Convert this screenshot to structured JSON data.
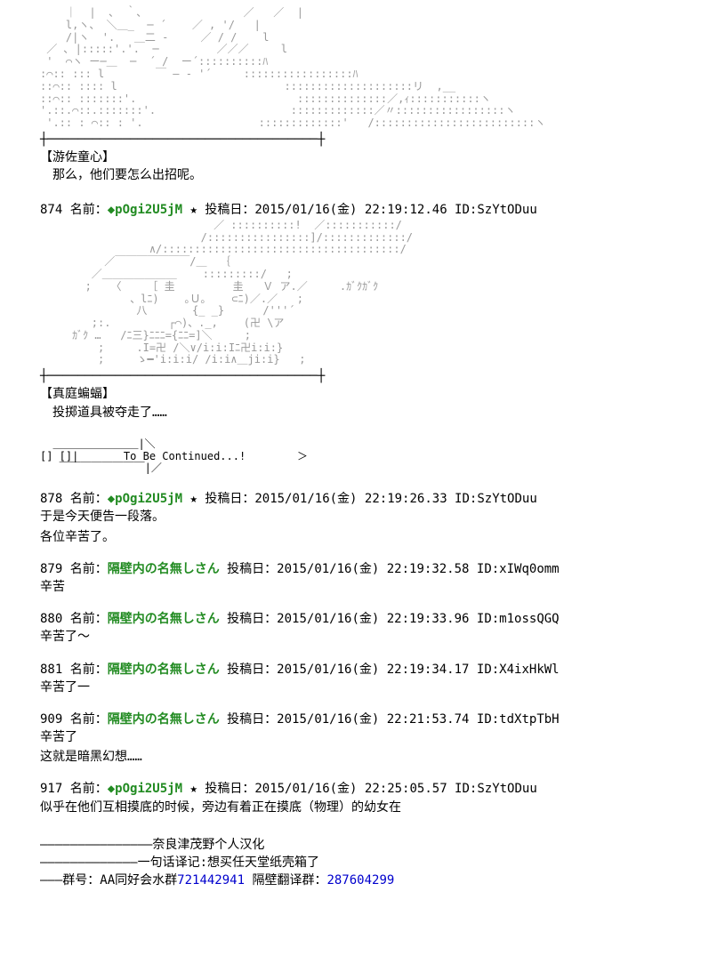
{
  "colors": {
    "background": "#ffffff",
    "text": "#000000",
    "ascii": "#999999",
    "name": "#228b22",
    "numlink": "#0000cd"
  },
  "typography": {
    "body_fontsize": 14,
    "ascii_fontsize": 12,
    "fontfamily": "MS PGothic"
  },
  "block1": {
    "ascii": "    ｜  |  、 ｀、               ／   ／  |\n    l,ヽ、 ＼＿_  ─ ´    ／ , '/   |\n    /|ヽ  '.   ＿二 -     ／ / /    l\n ／ ､ |:::::'.'.  ─         ／／／     l\n '  ⌒ヽ ー─＿  ─  ´ /  ー´::::::::::ﾊ\n:⌒:: ::: l        ￣ ― - '´     :::::::::::::::::ﾊ\n::⌒:: :::: l                          ::::::::::::::::::::リ  ,__\n::⌒:: :::::::'.                         ::::::::::::::／,ｨ:::::::::::ヽ\n'.::.⌒::.:::::::'.                     :::::::::::::／〃:::::::::::::::::ヽ\n '.:: : ⌒:: : '.                  :::::::::::::'   /:::::::::::::::::::::::::ヽ",
    "separator": "┼────────────────────────────────────┼",
    "character": "【游佐童心】",
    "dialogue": "那么，他们要怎么出招呢。"
  },
  "post874": {
    "num": "874",
    "nameprefix": "名前：",
    "name": "◆pOgi2U5jM",
    "star": "★",
    "dateprefix": "投稿日：",
    "date": "2015/01/16(金) 22:19:12.46 ID:SzYtODuu",
    "ascii": "                           ／ ::::::::::!  ／:::::::::::/\n                         /::::::::::::::::]/:::::::::::::/\n                 ∧/:::::::::::::::::::::::::::::::::::::/\n          ／￣￣￣￣￣￣￣/＿  ｛\n        ／＿＿＿＿＿＿＿    :::::::::/   ;\n       ;   〈    ［ 圭         圭   Ｖ ア.／     .ｶﾞｸｶﾞｸ\n              、lﾆ)    ｡Ｕ｡    ⊂ﾆ)／.／   ;\n               八       {_ _}      /'''´\n        ;:.         ┌⌒)、._,    (卍 \\ア\n     ｶﾞｸ …   /ﾆ三}ﾆﾆﾆ={ﾆﾆ=]＼     ;\n         ;     .I=卍 /＼∨/i:i:Iﾆ卍i:i:}\n         ;     ゝ━'i:i:i/ ∕i:i∧＿ji:i}   ;",
    "separator": "┼────────────────────────────────────┼",
    "character": "【真庭蝙蝠】",
    "dialogue": "投掷道具被夺走了……"
  },
  "tbc": {
    "ascii": "  ＿＿＿＿＿＿＿＿|＼\n[] []|       To Be Continued...!        ＞\n   ￣￣￣￣￣￣￣￣|／"
  },
  "post878": {
    "num": "878",
    "nameprefix": "名前：",
    "name": "◆pOgi2U5jM",
    "star": "★",
    "dateprefix": "投稿日：",
    "date": "2015/01/16(金) 22:19:26.33 ID:SzYtODuu",
    "body1": "于是今天便告一段落。",
    "body2": "各位辛苦了。"
  },
  "post879": {
    "num": "879",
    "nameprefix": "名前：",
    "name": "隔壁内の名無しさん",
    "dateprefix": "投稿日：",
    "date": "2015/01/16(金) 22:19:32.58 ID:xIWq0omm",
    "body": "辛苦"
  },
  "post880": {
    "num": "880",
    "nameprefix": "名前：",
    "name": "隔壁内の名無しさん",
    "dateprefix": "投稿日：",
    "date": "2015/01/16(金) 22:19:33.96 ID:m1ossQGQ",
    "body": "辛苦了～"
  },
  "post881": {
    "num": "881",
    "nameprefix": "名前：",
    "name": "隔壁内の名無しさん",
    "dateprefix": "投稿日：",
    "date": "2015/01/16(金) 22:19:34.17 ID:X4ixHkWl",
    "body": "辛苦了一"
  },
  "post909": {
    "num": "909",
    "nameprefix": "名前：",
    "name": "隔壁内の名無しさん",
    "dateprefix": "投稿日：",
    "date": "2015/01/16(金) 22:21:53.74 ID:tdXtpTbH",
    "body1": "辛苦了",
    "body2": "这就是暗黑幻想……"
  },
  "post917": {
    "num": "917",
    "nameprefix": "名前：",
    "name": "◆pOgi2U5jM",
    "star": "★",
    "dateprefix": "投稿日：",
    "date": "2015/01/16(金) 22:25:05.57 ID:SzYtODuu",
    "body": "似乎在他们互相摸底的时候，旁边有着正在摸底（物理）的幼女在"
  },
  "footer": {
    "line1": "―――――――――――――――奈良津茂野个人汉化",
    "line2": "―――――――――――――一句话译记:想买任天堂纸壳箱了",
    "line3pre": "―――群号：AA同好会水群",
    "line3num1": "721442941",
    "line3mid": " 隔壁翻译群：",
    "line3num2": "287604299"
  }
}
